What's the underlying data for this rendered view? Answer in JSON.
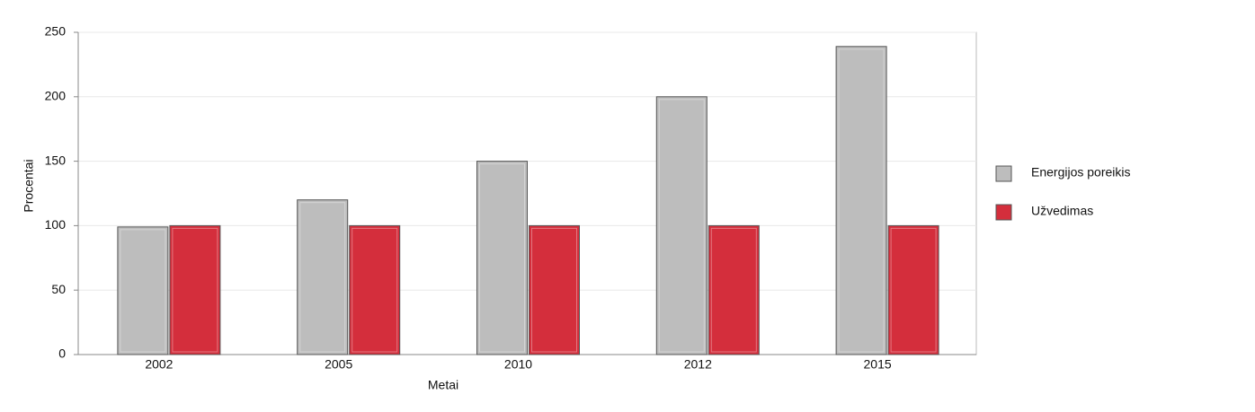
{
  "chart_data": {
    "type": "bar",
    "x_label": "Metai",
    "y_label": "Procentai",
    "categories": [
      "2002",
      "2005",
      "2010",
      "2012",
      "2015"
    ],
    "series": [
      {
        "name": "Energijos poreikis",
        "color": "#bdbdbd",
        "values": [
          99,
          120,
          150,
          200,
          239
        ]
      },
      {
        "name": "Užvedimas",
        "color": "#d42e3c",
        "values": [
          100,
          100,
          100,
          100,
          100
        ]
      }
    ],
    "ylim": [
      0,
      250
    ],
    "yticks": [
      0,
      50,
      100,
      150,
      200,
      250
    ],
    "grid": true,
    "legend": "right"
  }
}
